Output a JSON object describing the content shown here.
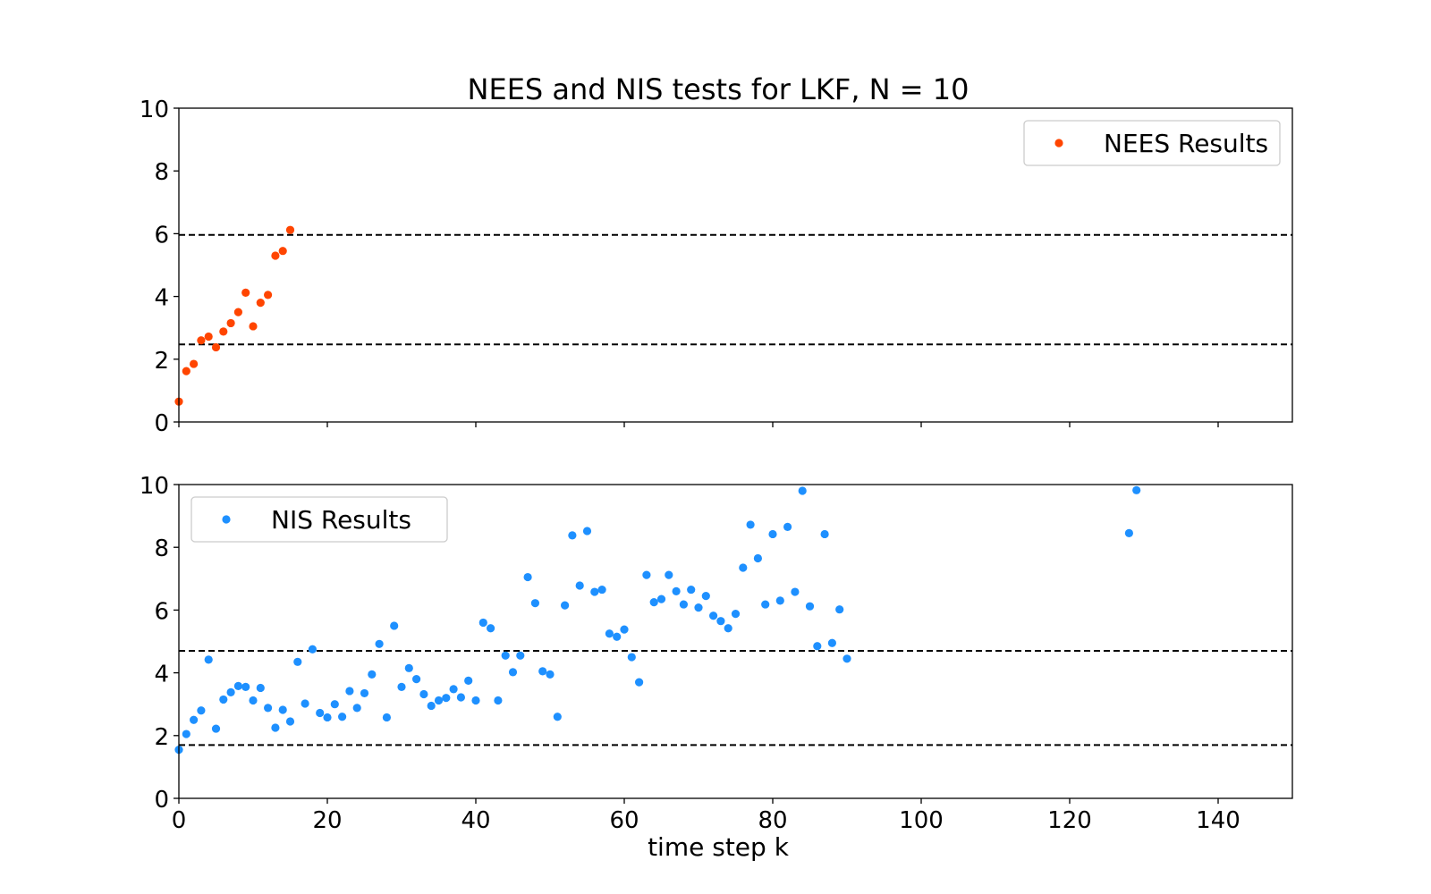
{
  "figure": {
    "title": "NEES and NIS tests for LKF, N = 10",
    "xlabel": "time step k"
  },
  "chart_data": [
    {
      "type": "scatter",
      "title": "NEES and NIS tests for LKF, N = 10",
      "xlabel": "",
      "ylabel": "",
      "xlim": [
        0,
        150
      ],
      "ylim": [
        0,
        10
      ],
      "xticks": [
        0,
        20,
        40,
        60,
        80,
        100,
        120,
        140
      ],
      "yticks": [
        0,
        2,
        4,
        6,
        8,
        10
      ],
      "show_xtick_labels": false,
      "grid": false,
      "legend": "upper right",
      "series": [
        {
          "name": "NEES Results",
          "color": "#ff4500",
          "x": [
            0,
            1,
            2,
            3,
            4,
            5,
            6,
            7,
            8,
            9,
            10,
            11,
            12,
            13,
            14,
            15
          ],
          "y": [
            0.65,
            1.62,
            1.85,
            2.6,
            2.72,
            2.38,
            2.88,
            3.15,
            3.5,
            4.12,
            3.05,
            3.8,
            4.05,
            5.3,
            5.45,
            6.12
          ]
        }
      ],
      "hlines": [
        {
          "y": 5.96,
          "style": "dashed",
          "color": "#000000"
        },
        {
          "y": 2.47,
          "style": "dashed",
          "color": "#000000"
        }
      ]
    },
    {
      "type": "scatter",
      "xlabel": "time step k",
      "ylabel": "",
      "xlim": [
        0,
        150
      ],
      "ylim": [
        0,
        10
      ],
      "xticks": [
        0,
        20,
        40,
        60,
        80,
        100,
        120,
        140
      ],
      "yticks": [
        0,
        2,
        4,
        6,
        8,
        10
      ],
      "show_xtick_labels": true,
      "grid": false,
      "legend": "upper left",
      "series": [
        {
          "name": "NIS Results",
          "color": "#1e90ff",
          "x": [
            0,
            1,
            2,
            3,
            4,
            5,
            6,
            7,
            8,
            9,
            10,
            11,
            12,
            13,
            14,
            15,
            16,
            17,
            18,
            19,
            20,
            21,
            22,
            23,
            24,
            25,
            26,
            27,
            28,
            29,
            30,
            31,
            32,
            33,
            34,
            35,
            36,
            37,
            38,
            39,
            40,
            41,
            42,
            43,
            44,
            45,
            46,
            47,
            48,
            49,
            50,
            51,
            52,
            53,
            54,
            55,
            56,
            57,
            58,
            59,
            60,
            61,
            62,
            63,
            64,
            65,
            66,
            67,
            68,
            69,
            70,
            71,
            72,
            73,
            74,
            75,
            76,
            77,
            78,
            79,
            80,
            81,
            82,
            83,
            84,
            85,
            86,
            87,
            88,
            89,
            90,
            128,
            129
          ],
          "y": [
            1.55,
            2.05,
            2.5,
            2.8,
            4.42,
            2.22,
            3.15,
            3.38,
            3.58,
            3.55,
            3.12,
            3.52,
            2.88,
            2.25,
            2.82,
            2.45,
            4.35,
            3.02,
            4.75,
            2.72,
            2.58,
            3.0,
            2.6,
            3.42,
            2.88,
            3.35,
            3.95,
            4.92,
            2.58,
            5.5,
            3.55,
            4.15,
            3.8,
            3.32,
            2.95,
            3.12,
            3.2,
            3.48,
            3.22,
            3.75,
            3.12,
            5.6,
            5.42,
            3.12,
            4.55,
            4.02,
            4.55,
            7.05,
            6.22,
            4.05,
            3.95,
            2.6,
            6.15,
            8.38,
            6.78,
            8.52,
            6.58,
            6.65,
            5.25,
            5.15,
            5.38,
            4.5,
            3.7,
            7.12,
            6.25,
            6.35,
            7.12,
            6.6,
            6.18,
            6.65,
            6.08,
            6.45,
            5.82,
            5.65,
            5.42,
            5.88,
            7.35,
            8.72,
            7.65,
            6.18,
            8.42,
            6.3,
            8.65,
            6.58,
            9.8,
            6.12,
            4.85,
            8.42,
            4.95,
            6.02,
            4.45,
            8.45,
            9.82
          ]
        }
      ],
      "hlines": [
        {
          "y": 4.7,
          "style": "dashed",
          "color": "#000000"
        },
        {
          "y": 1.7,
          "style": "dashed",
          "color": "#000000"
        }
      ]
    }
  ]
}
